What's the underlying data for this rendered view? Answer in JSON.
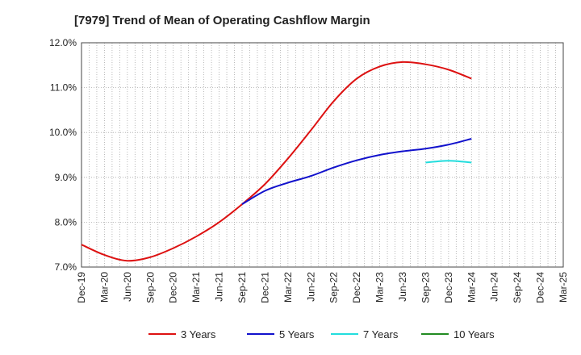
{
  "chart_data": {
    "type": "line",
    "title": "[7979]  Trend of Mean of Operating Cashflow Margin",
    "xlabel": "",
    "ylabel": "",
    "ylim": [
      7.0,
      12.0
    ],
    "yticks": [
      "7.0%",
      "8.0%",
      "9.0%",
      "10.0%",
      "11.0%",
      "12.0%"
    ],
    "ytick_values": [
      7.0,
      8.0,
      9.0,
      10.0,
      11.0,
      12.0
    ],
    "x_range": [
      "2019-12",
      "2025-03"
    ],
    "x_ticks": [
      "Dec-19",
      "Mar-20",
      "Jun-20",
      "Sep-20",
      "Dec-20",
      "Mar-21",
      "Jun-21",
      "Sep-21",
      "Dec-21",
      "Mar-22",
      "Jun-22",
      "Sep-22",
      "Dec-22",
      "Mar-23",
      "Jun-23",
      "Sep-23",
      "Dec-23",
      "Mar-24",
      "Jun-24",
      "Sep-24",
      "Dec-24",
      "Mar-25"
    ],
    "grid": true,
    "legend_position": "bottom",
    "series": [
      {
        "name": "3 Years",
        "color": "#dd1111",
        "points": [
          [
            "2019-12",
            7.5
          ],
          [
            "2020-03",
            7.27
          ],
          [
            "2020-06",
            7.14
          ],
          [
            "2020-09",
            7.22
          ],
          [
            "2020-12",
            7.42
          ],
          [
            "2021-03",
            7.68
          ],
          [
            "2021-06",
            8.0
          ],
          [
            "2021-09",
            8.4
          ],
          [
            "2021-12",
            8.85
          ],
          [
            "2022-03",
            9.42
          ],
          [
            "2022-06",
            10.05
          ],
          [
            "2022-09",
            10.7
          ],
          [
            "2022-12",
            11.2
          ],
          [
            "2023-03",
            11.47
          ],
          [
            "2023-06",
            11.57
          ],
          [
            "2023-09",
            11.52
          ],
          [
            "2023-12",
            11.4
          ],
          [
            "2024-03",
            11.2
          ]
        ]
      },
      {
        "name": "5 Years",
        "color": "#1111cc",
        "points": [
          [
            "2021-09",
            8.4
          ],
          [
            "2021-12",
            8.7
          ],
          [
            "2022-03",
            8.88
          ],
          [
            "2022-06",
            9.03
          ],
          [
            "2022-09",
            9.22
          ],
          [
            "2022-12",
            9.38
          ],
          [
            "2023-03",
            9.5
          ],
          [
            "2023-06",
            9.58
          ],
          [
            "2023-09",
            9.64
          ],
          [
            "2023-12",
            9.73
          ],
          [
            "2024-03",
            9.86
          ]
        ]
      },
      {
        "name": "7 Years",
        "color": "#22dddd",
        "points": [
          [
            "2023-09",
            9.33
          ],
          [
            "2023-12",
            9.37
          ],
          [
            "2024-03",
            9.33
          ]
        ]
      },
      {
        "name": "10 Years",
        "color": "#228b22",
        "points": []
      }
    ]
  }
}
